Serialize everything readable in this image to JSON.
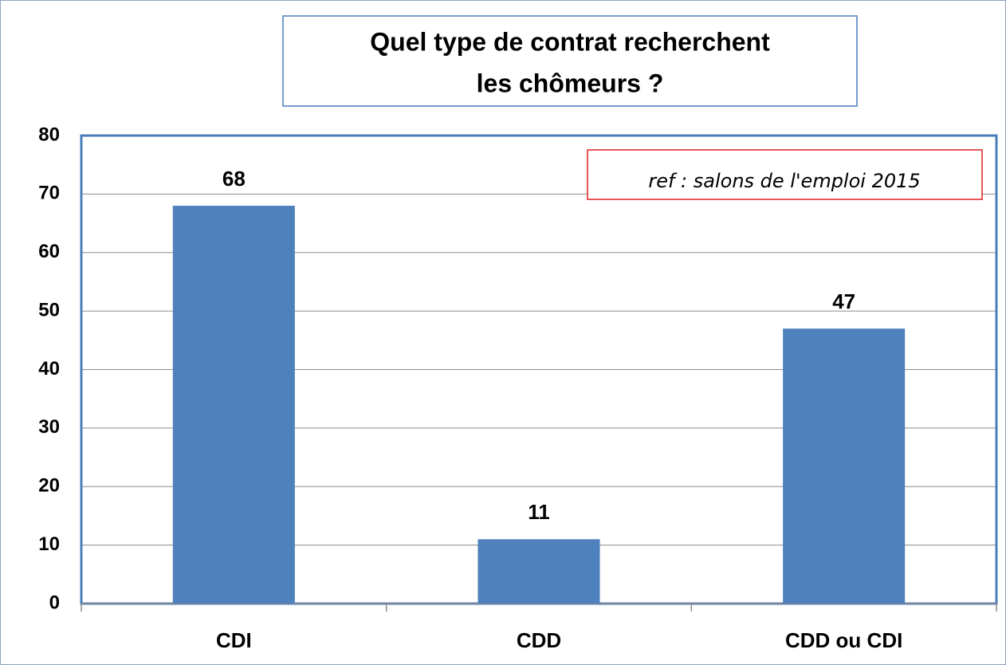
{
  "chart_data": {
    "type": "bar",
    "title": [
      "Quel type de contrat recherchent",
      "les chômeurs ?"
    ],
    "annotation": "ref : salons de l'emploi 2015",
    "categories": [
      "CDI",
      "CDD",
      "CDD ou CDI"
    ],
    "values": [
      68,
      11,
      47
    ],
    "color": "#4f81bd",
    "ylim": [
      0,
      80
    ],
    "yticks": [
      0,
      10,
      20,
      30,
      40,
      50,
      60,
      70,
      80
    ],
    "grid": true
  }
}
